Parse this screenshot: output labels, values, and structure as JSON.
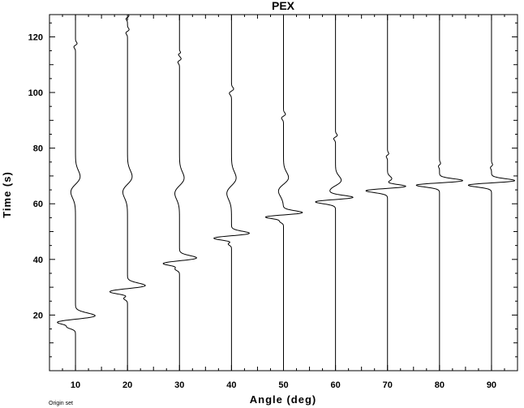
{
  "chart_data": {
    "type": "line",
    "title": "PEX",
    "xlabel": "Angle (deg)",
    "ylabel": "Time (s)",
    "xlim": [
      5,
      95
    ],
    "ylim": [
      0,
      128
    ],
    "x_ticks": [
      10,
      20,
      30,
      40,
      50,
      60,
      70,
      80,
      90
    ],
    "y_ticks": [
      20,
      40,
      60,
      80,
      100,
      120
    ],
    "grid": false,
    "footnote": "Origin set",
    "series": [
      {
        "angle": 10,
        "events": [
          {
            "t": 18.5,
            "amp": 5.5,
            "w": 1.8
          },
          {
            "t": 16.0,
            "amp": 1.0,
            "w": 0.9
          },
          {
            "t": 67.0,
            "amp": 1.3,
            "w": 4.0
          },
          {
            "t": 117.0,
            "amp": 0.45,
            "w": 0.9
          }
        ]
      },
      {
        "angle": 20,
        "events": [
          {
            "t": 29.5,
            "amp": 5.0,
            "w": 1.6
          },
          {
            "t": 26.5,
            "amp": 0.9,
            "w": 0.9
          },
          {
            "t": 67.0,
            "amp": 1.3,
            "w": 4.0
          },
          {
            "t": 122.0,
            "amp": 0.45,
            "w": 0.9
          },
          {
            "t": 127.0,
            "amp": 0.4,
            "w": 0.8
          }
        ]
      },
      {
        "angle": 30,
        "events": [
          {
            "t": 39.5,
            "amp": 4.8,
            "w": 1.5
          },
          {
            "t": 37.0,
            "amp": 0.9,
            "w": 0.9
          },
          {
            "t": 66.5,
            "amp": 1.3,
            "w": 4.0
          },
          {
            "t": 111.5,
            "amp": 0.45,
            "w": 0.9
          },
          {
            "t": 114.0,
            "amp": 0.3,
            "w": 0.6
          }
        ]
      },
      {
        "angle": 40,
        "events": [
          {
            "t": 48.5,
            "amp": 5.0,
            "w": 1.3
          },
          {
            "t": 46.0,
            "amp": 0.8,
            "w": 0.8
          },
          {
            "t": 66.5,
            "amp": 1.3,
            "w": 4.0
          },
          {
            "t": 100.5,
            "amp": 0.6,
            "w": 1.1
          }
        ]
      },
      {
        "angle": 50,
        "events": [
          {
            "t": 56.0,
            "amp": 5.3,
            "w": 1.2
          },
          {
            "t": 54.0,
            "amp": 0.7,
            "w": 0.8
          },
          {
            "t": 67.0,
            "amp": 1.4,
            "w": 3.5
          },
          {
            "t": 91.5,
            "amp": 0.55,
            "w": 1.0
          }
        ]
      },
      {
        "angle": 60,
        "events": [
          {
            "t": 61.5,
            "amp": 5.5,
            "w": 1.2
          },
          {
            "t": 66.5,
            "amp": 1.6,
            "w": 2.8
          },
          {
            "t": 84.0,
            "amp": 0.5,
            "w": 0.9
          }
        ]
      },
      {
        "angle": 70,
        "events": [
          {
            "t": 65.5,
            "amp": 6.0,
            "w": 1.2
          },
          {
            "t": 68.0,
            "amp": 1.2,
            "w": 1.5
          },
          {
            "t": 77.5,
            "amp": 0.35,
            "w": 0.8
          }
        ]
      },
      {
        "angle": 80,
        "events": [
          {
            "t": 67.5,
            "amp": 6.5,
            "w": 1.2
          },
          {
            "t": 74.0,
            "amp": 0.3,
            "w": 0.8
          }
        ]
      },
      {
        "angle": 90,
        "events": [
          {
            "t": 67.5,
            "amp": 6.5,
            "w": 1.2
          },
          {
            "t": 73.5,
            "amp": 0.3,
            "w": 0.8
          }
        ]
      }
    ]
  }
}
